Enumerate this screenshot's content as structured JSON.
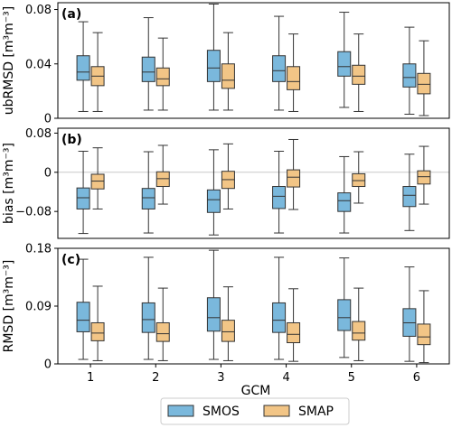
{
  "colors": {
    "SMOS": "#7ab8dc",
    "SMAP": "#f2c586",
    "edge": "#333333",
    "zeroline": "#c8c8c8"
  },
  "chart_data": {
    "type": "box",
    "xlabel": "GCM",
    "categories": [
      "1",
      "2",
      "3",
      "4",
      "5",
      "6"
    ],
    "legend": {
      "placement": "bottom-center",
      "entries": [
        "SMOS",
        "SMAP"
      ]
    },
    "panels": [
      {
        "tag": "(a)",
        "ylabel": "ubRMSD [m³m⁻³]",
        "ylim": [
          0,
          0.085
        ],
        "yticks": [
          0,
          0.04,
          0.08
        ],
        "ytick_labels": [
          "0",
          "0.04",
          "0.08"
        ],
        "zero_line": false,
        "series": [
          {
            "name": "SMOS",
            "boxes": [
              {
                "whislo": 0.005,
                "q1": 0.028,
                "med": 0.034,
                "q3": 0.046,
                "whishi": 0.071
              },
              {
                "whislo": 0.006,
                "q1": 0.027,
                "med": 0.034,
                "q3": 0.045,
                "whishi": 0.074
              },
              {
                "whislo": 0.006,
                "q1": 0.027,
                "med": 0.037,
                "q3": 0.05,
                "whishi": 0.084
              },
              {
                "whislo": 0.006,
                "q1": 0.027,
                "med": 0.035,
                "q3": 0.046,
                "whishi": 0.075
              },
              {
                "whislo": 0.008,
                "q1": 0.031,
                "med": 0.038,
                "q3": 0.049,
                "whishi": 0.078
              },
              {
                "whislo": 0.003,
                "q1": 0.023,
                "med": 0.03,
                "q3": 0.04,
                "whishi": 0.067
              }
            ]
          },
          {
            "name": "SMAP",
            "boxes": [
              {
                "whislo": 0.005,
                "q1": 0.024,
                "med": 0.031,
                "q3": 0.038,
                "whishi": 0.063
              },
              {
                "whislo": 0.006,
                "q1": 0.024,
                "med": 0.029,
                "q3": 0.037,
                "whishi": 0.059
              },
              {
                "whislo": 0.006,
                "q1": 0.022,
                "med": 0.028,
                "q3": 0.04,
                "whishi": 0.063
              },
              {
                "whislo": 0.005,
                "q1": 0.021,
                "med": 0.027,
                "q3": 0.038,
                "whishi": 0.062
              },
              {
                "whislo": 0.005,
                "q1": 0.025,
                "med": 0.031,
                "q3": 0.039,
                "whishi": 0.062
              },
              {
                "whislo": 0.002,
                "q1": 0.018,
                "med": 0.025,
                "q3": 0.033,
                "whishi": 0.057
              }
            ]
          }
        ]
      },
      {
        "tag": "(b)",
        "ylabel": "bias [m³m⁻³]",
        "ylim": [
          -0.135,
          0.09
        ],
        "yticks": [
          -0.08,
          0,
          0.08
        ],
        "ytick_labels": [
          "−0.08",
          "0",
          "0.08"
        ],
        "zero_line": true,
        "series": [
          {
            "name": "SMOS",
            "boxes": [
              {
                "whislo": -0.125,
                "q1": -0.075,
                "med": -0.052,
                "q3": -0.032,
                "whishi": 0.043
              },
              {
                "whislo": -0.124,
                "q1": -0.075,
                "med": -0.052,
                "q3": -0.033,
                "whishi": 0.042
              },
              {
                "whislo": -0.128,
                "q1": -0.082,
                "med": -0.056,
                "q3": -0.036,
                "whishi": 0.046
              },
              {
                "whislo": -0.124,
                "q1": -0.074,
                "med": -0.049,
                "q3": -0.029,
                "whishi": 0.043
              },
              {
                "whislo": -0.124,
                "q1": -0.08,
                "med": -0.058,
                "q3": -0.042,
                "whishi": 0.032
              },
              {
                "whislo": -0.119,
                "q1": -0.07,
                "med": -0.047,
                "q3": -0.029,
                "whishi": 0.037
              }
            ]
          },
          {
            "name": "SMAP",
            "boxes": [
              {
                "whislo": -0.075,
                "q1": -0.034,
                "med": -0.018,
                "q3": -0.004,
                "whishi": 0.05
              },
              {
                "whislo": -0.065,
                "q1": -0.029,
                "med": -0.013,
                "q3": 0.001,
                "whishi": 0.055
              },
              {
                "whislo": -0.075,
                "q1": -0.033,
                "med": -0.015,
                "q3": 0.002,
                "whishi": 0.058
              },
              {
                "whislo": -0.076,
                "q1": -0.03,
                "med": -0.01,
                "q3": 0.005,
                "whishi": 0.067
              },
              {
                "whislo": -0.063,
                "q1": -0.029,
                "med": -0.017,
                "q3": -0.003,
                "whishi": 0.042
              },
              {
                "whislo": -0.065,
                "q1": -0.024,
                "med": -0.009,
                "q3": 0.003,
                "whishi": 0.053
              }
            ]
          }
        ]
      },
      {
        "tag": "(c)",
        "ylabel": "RMSD [m³m⁻³]",
        "ylim": [
          0,
          0.18
        ],
        "yticks": [
          0,
          0.09,
          0.18
        ],
        "ytick_labels": [
          "0",
          "0.09",
          "0.18"
        ],
        "zero_line": false,
        "series": [
          {
            "name": "SMOS",
            "boxes": [
              {
                "whislo": 0.007,
                "q1": 0.05,
                "med": 0.068,
                "q3": 0.096,
                "whishi": 0.163
              },
              {
                "whislo": 0.007,
                "q1": 0.049,
                "med": 0.069,
                "q3": 0.095,
                "whishi": 0.166
              },
              {
                "whislo": 0.007,
                "q1": 0.051,
                "med": 0.072,
                "q3": 0.103,
                "whishi": 0.177
              },
              {
                "whislo": 0.007,
                "q1": 0.049,
                "med": 0.068,
                "q3": 0.095,
                "whishi": 0.166
              },
              {
                "whislo": 0.01,
                "q1": 0.052,
                "med": 0.072,
                "q3": 0.1,
                "whishi": 0.165
              },
              {
                "whislo": 0.004,
                "q1": 0.043,
                "med": 0.064,
                "q3": 0.086,
                "whishi": 0.151
              }
            ]
          },
          {
            "name": "SMAP",
            "boxes": [
              {
                "whislo": 0.005,
                "q1": 0.036,
                "med": 0.048,
                "q3": 0.064,
                "whishi": 0.121
              },
              {
                "whislo": 0.005,
                "q1": 0.035,
                "med": 0.047,
                "q3": 0.064,
                "whishi": 0.118
              },
              {
                "whislo": 0.005,
                "q1": 0.035,
                "med": 0.05,
                "q3": 0.068,
                "whishi": 0.12
              },
              {
                "whislo": 0.004,
                "q1": 0.033,
                "med": 0.046,
                "q3": 0.064,
                "whishi": 0.117
              },
              {
                "whislo": 0.005,
                "q1": 0.037,
                "med": 0.048,
                "q3": 0.066,
                "whishi": 0.118
              },
              {
                "whislo": 0.002,
                "q1": 0.03,
                "med": 0.042,
                "q3": 0.062,
                "whishi": 0.114
              }
            ]
          }
        ]
      }
    ]
  }
}
